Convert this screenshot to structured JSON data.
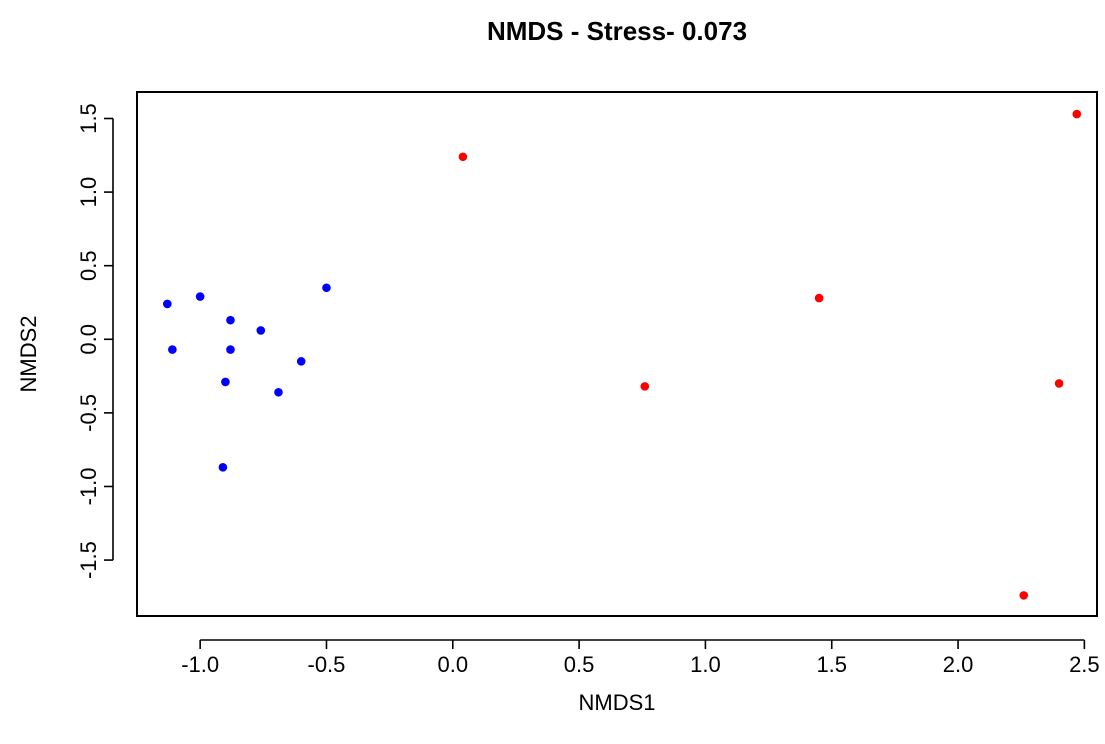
{
  "chart_data": {
    "type": "scatter",
    "title": "NMDS - Stress- 0.073",
    "xlabel": "NMDS1",
    "ylabel": "NMDS2",
    "xlim": [
      -1.25,
      2.55
    ],
    "ylim": [
      -1.88,
      1.68
    ],
    "x_ticks": [
      -1.0,
      -0.5,
      0.0,
      0.5,
      1.0,
      1.5,
      2.0,
      2.5
    ],
    "x_tick_labels": [
      "-1.0",
      "-0.5",
      "0.0",
      "0.5",
      "1.0",
      "1.5",
      "2.0",
      "2.5"
    ],
    "y_ticks": [
      -1.5,
      -1.0,
      -0.5,
      0.0,
      0.5,
      1.0,
      1.5
    ],
    "y_tick_labels": [
      "-1.5",
      "-1.0",
      "-0.5",
      "0.0",
      "0.5",
      "1.0",
      "1.5"
    ],
    "grid": false,
    "legend": "none",
    "series": [
      {
        "color": "#0000ff",
        "points": [
          {
            "x": -1.13,
            "y": 0.24
          },
          {
            "x": -1.0,
            "y": 0.29
          },
          {
            "x": -1.11,
            "y": -0.07
          },
          {
            "x": -0.88,
            "y": 0.13
          },
          {
            "x": -0.88,
            "y": -0.07
          },
          {
            "x": -0.76,
            "y": 0.06
          },
          {
            "x": -0.5,
            "y": 0.35
          },
          {
            "x": -0.6,
            "y": -0.15
          },
          {
            "x": -0.9,
            "y": -0.29
          },
          {
            "x": -0.69,
            "y": -0.36
          },
          {
            "x": -0.91,
            "y": -0.87
          }
        ]
      },
      {
        "color": "#ff0000",
        "points": [
          {
            "x": 0.04,
            "y": 1.24
          },
          {
            "x": 0.76,
            "y": -0.32
          },
          {
            "x": 1.45,
            "y": 0.28
          },
          {
            "x": 2.4,
            "y": -0.3
          },
          {
            "x": 2.47,
            "y": 1.53
          },
          {
            "x": 2.26,
            "y": -1.74
          }
        ]
      }
    ]
  }
}
